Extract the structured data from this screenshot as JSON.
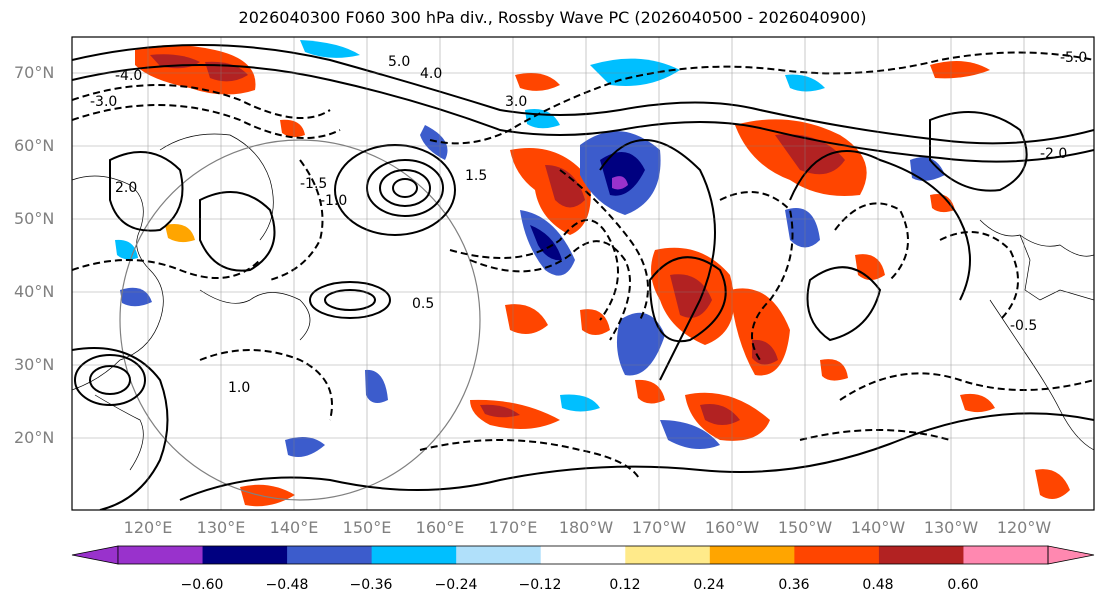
{
  "title": "2026040300 F060 300 hPa div., Rossby Wave PC (2026040500 - 2026040900)",
  "lat_labels": [
    "70°N",
    "60°N",
    "50°N",
    "40°N",
    "30°N",
    "20°N"
  ],
  "lon_labels": [
    "120°E",
    "130°E",
    "140°E",
    "150°E",
    "160°E",
    "170°E",
    "180°W",
    "170°W",
    "160°W",
    "150°W",
    "140°W",
    "130°W",
    "120°W"
  ],
  "colorbar": {
    "colors": [
      "#9932cc",
      "#000080",
      "#3c5ccc",
      "#00bfff",
      "#b0e0fa",
      "#ffffff",
      "#ffea8a",
      "#ffa500",
      "#ff4500",
      "#b22222",
      "#ff88b0"
    ],
    "ticks": [
      "−0.60",
      "−0.48",
      "−0.36",
      "−0.24",
      "−0.12",
      "0.12",
      "0.24",
      "0.36",
      "0.48",
      "0.60"
    ]
  },
  "contour_labels": [
    "5.0",
    "4.0",
    "3.0",
    "2.0",
    "1.5",
    "1.0",
    "0.5",
    "-0.5",
    "-1.0",
    "-1.5",
    "-2.0",
    "-3.0",
    "-4.0",
    "-5.0"
  ]
}
